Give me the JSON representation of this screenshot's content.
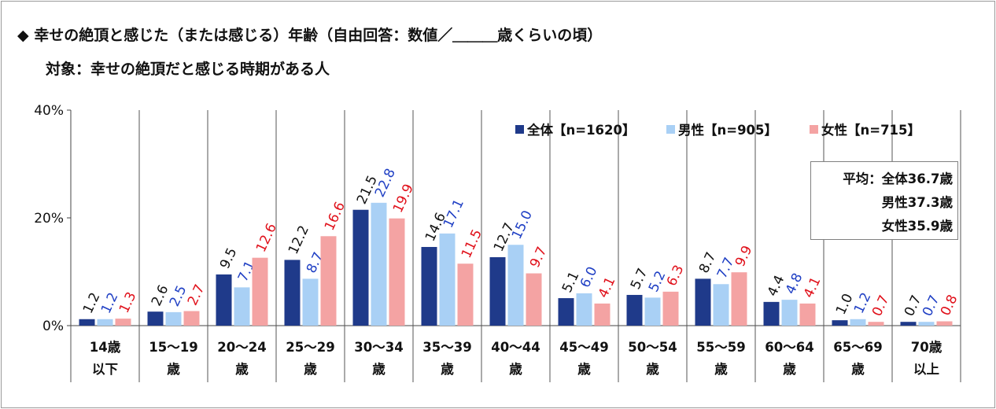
{
  "header": {
    "title": "◆ 幸せの絶頂と感じた（または感じる）年齢（自由回答：数値／＿＿＿歳くらいの頃）",
    "subtitle": "対象：幸せの絶頂だと感じる時期がある人"
  },
  "average_box": {
    "line1": "平均：全体36.7歳",
    "line2": "男性37.3歳",
    "line3": "女性35.9歳"
  },
  "chart_data": {
    "type": "bar",
    "y_ticks": [
      "0%",
      "20%",
      "40%"
    ],
    "ylim": [
      0,
      40
    ],
    "categories": [
      [
        "14歳",
        "以下"
      ],
      [
        "15～19",
        "歳"
      ],
      [
        "20～24",
        "歳"
      ],
      [
        "25～29",
        "歳"
      ],
      [
        "30～34",
        "歳"
      ],
      [
        "35～39",
        "歳"
      ],
      [
        "40～44",
        "歳"
      ],
      [
        "45～49",
        "歳"
      ],
      [
        "50～54",
        "歳"
      ],
      [
        "55～59",
        "歳"
      ],
      [
        "60～64",
        "歳"
      ],
      [
        "65～69",
        "歳"
      ],
      [
        "70歳",
        "以上"
      ]
    ],
    "series": [
      {
        "name": "全体【n=1620】",
        "color": "#1f3a8a",
        "label_color": "#111111",
        "values": [
          1.2,
          2.6,
          9.5,
          12.2,
          21.5,
          14.6,
          12.7,
          5.1,
          5.7,
          8.7,
          4.4,
          1.0,
          0.7
        ],
        "labels": [
          "1.2",
          "2.6",
          "9.5",
          "12.2",
          "21.5",
          "14.6",
          "12.7",
          "5.1",
          "5.7",
          "8.7",
          "4.4",
          "1.0",
          "0.7"
        ]
      },
      {
        "name": "男性【n=905】",
        "color": "#a9d0f5",
        "label_color": "#1f3fc4",
        "values": [
          1.2,
          2.5,
          7.1,
          8.7,
          22.8,
          17.1,
          15.0,
          6.0,
          5.2,
          7.7,
          4.8,
          1.2,
          0.7
        ],
        "labels": [
          "1.2",
          "2.5",
          "7.1",
          "8.7",
          "22.8",
          "17.1",
          "15.0",
          "6.0",
          "5.2",
          "7.7",
          "4.8",
          "1.2",
          "0.7"
        ]
      },
      {
        "name": "女性【n=715】",
        "color": "#f4a3a3",
        "label_color": "#e0101a",
        "values": [
          1.3,
          2.7,
          12.6,
          16.6,
          19.9,
          11.5,
          9.7,
          4.1,
          6.3,
          9.9,
          4.1,
          0.7,
          0.8
        ],
        "labels": [
          "1.3",
          "2.7",
          "12.6",
          "16.6",
          "19.9",
          "11.5",
          "9.7",
          "4.1",
          "6.3",
          "9.9",
          "4.1",
          "0.7",
          "0.8"
        ]
      }
    ],
    "legend_position": "top-right",
    "grid": false
  }
}
